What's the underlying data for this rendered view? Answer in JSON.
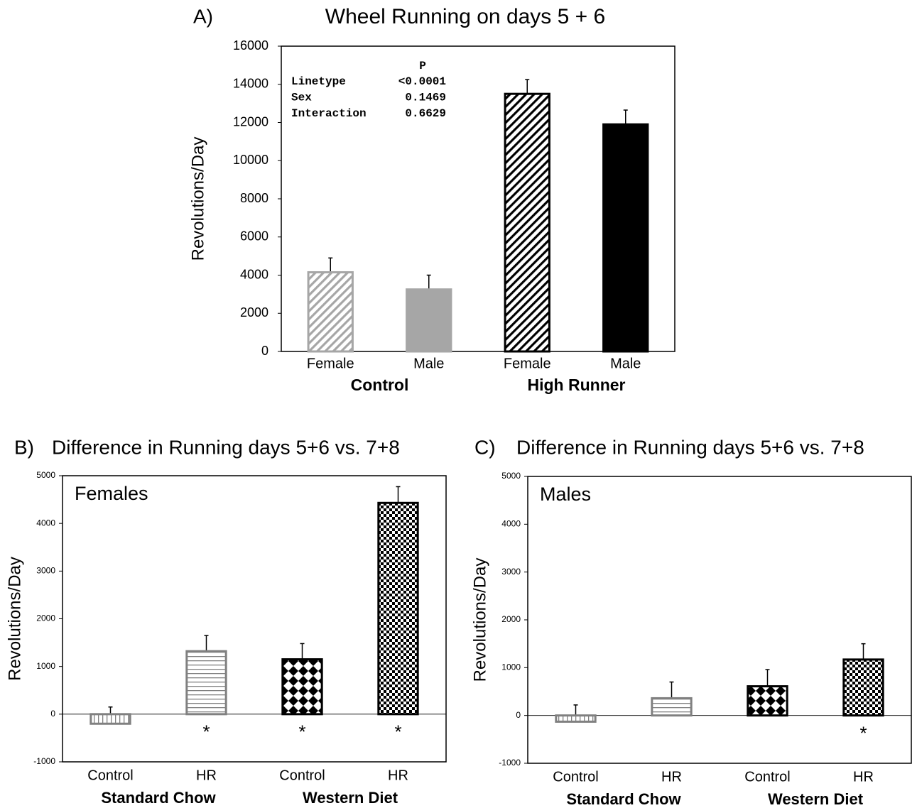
{
  "chart_data": [
    {
      "type": "bar",
      "panel_label": "A)",
      "title": "Wheel Running on days 5 + 6",
      "y_label": "Revolutions/Day",
      "categories": [
        "Female",
        "Male",
        "Female",
        "Male"
      ],
      "category_colors": [
        "#000000",
        "#000000",
        "#000000",
        "#000000"
      ],
      "groups": [
        {
          "name": "Control",
          "color": "#a6a6a6"
        },
        {
          "name": "High Runner",
          "color": "#000000"
        }
      ],
      "values": [
        4150,
        3250,
        13500,
        11900
      ],
      "errors": [
        750,
        750,
        750,
        750
      ],
      "colors": [
        "#a6a6a6",
        "#a6a6a6",
        "#000000",
        "#000000"
      ],
      "patterns": [
        "diagonal",
        "solid",
        "diagonal",
        "solid"
      ],
      "ylim": [
        0,
        16000
      ],
      "yticks": [
        0,
        2000,
        4000,
        6000,
        8000,
        10000,
        12000,
        14000,
        16000
      ],
      "stats": {
        "header": "P",
        "rows": [
          [
            "Linetype",
            "<0.0001"
          ],
          [
            "Sex",
            "0.1469"
          ],
          [
            "Interaction",
            "0.6629"
          ]
        ]
      }
    },
    {
      "type": "bar",
      "panel_label": "B)",
      "title": "Difference in Running days 5+6 vs. 7+8",
      "y_label": "Revolutions/Day",
      "annotation": "Females",
      "categories": [
        "Control",
        "HR",
        "Control",
        "HR"
      ],
      "category_colors": [
        "#a6a6a6",
        "#000000",
        "#a6a6a6",
        "#000000"
      ],
      "groups": [
        {
          "name": "Standard Chow",
          "color": "#000000"
        },
        {
          "name": "Western Diet",
          "color": "#000000"
        }
      ],
      "values": [
        -200,
        1320,
        1150,
        4430
      ],
      "errors": [
        350,
        330,
        330,
        340
      ],
      "significance": [
        null,
        "*",
        "*",
        "*"
      ],
      "colors": [
        "#808080",
        "#808080",
        "#000000",
        "#000000"
      ],
      "patterns": [
        "vertical",
        "horizontal",
        "diamond",
        "checker"
      ],
      "ylim": [
        -1000,
        5000
      ],
      "yticks": [
        -1000,
        0,
        1000,
        2000,
        3000,
        4000,
        5000
      ]
    },
    {
      "type": "bar",
      "panel_label": "C)",
      "title": "Difference in Running days 5+6 vs. 7+8",
      "y_label": "Revolutions/Day",
      "annotation": "Males",
      "categories": [
        "Control",
        "HR",
        "Control",
        "HR"
      ],
      "category_colors": [
        "#a6a6a6",
        "#000000",
        "#a6a6a6",
        "#000000"
      ],
      "groups": [
        {
          "name": "Standard Chow",
          "color": "#000000"
        },
        {
          "name": "Western Diet",
          "color": "#000000"
        }
      ],
      "values": [
        -130,
        360,
        610,
        1170
      ],
      "errors": [
        350,
        340,
        350,
        330
      ],
      "significance": [
        null,
        null,
        null,
        "*"
      ],
      "colors": [
        "#808080",
        "#808080",
        "#000000",
        "#000000"
      ],
      "patterns": [
        "vertical",
        "horizontal",
        "diamond",
        "checker"
      ],
      "ylim": [
        -1000,
        5000
      ],
      "yticks": [
        -1000,
        0,
        1000,
        2000,
        3000,
        4000,
        5000
      ]
    }
  ]
}
